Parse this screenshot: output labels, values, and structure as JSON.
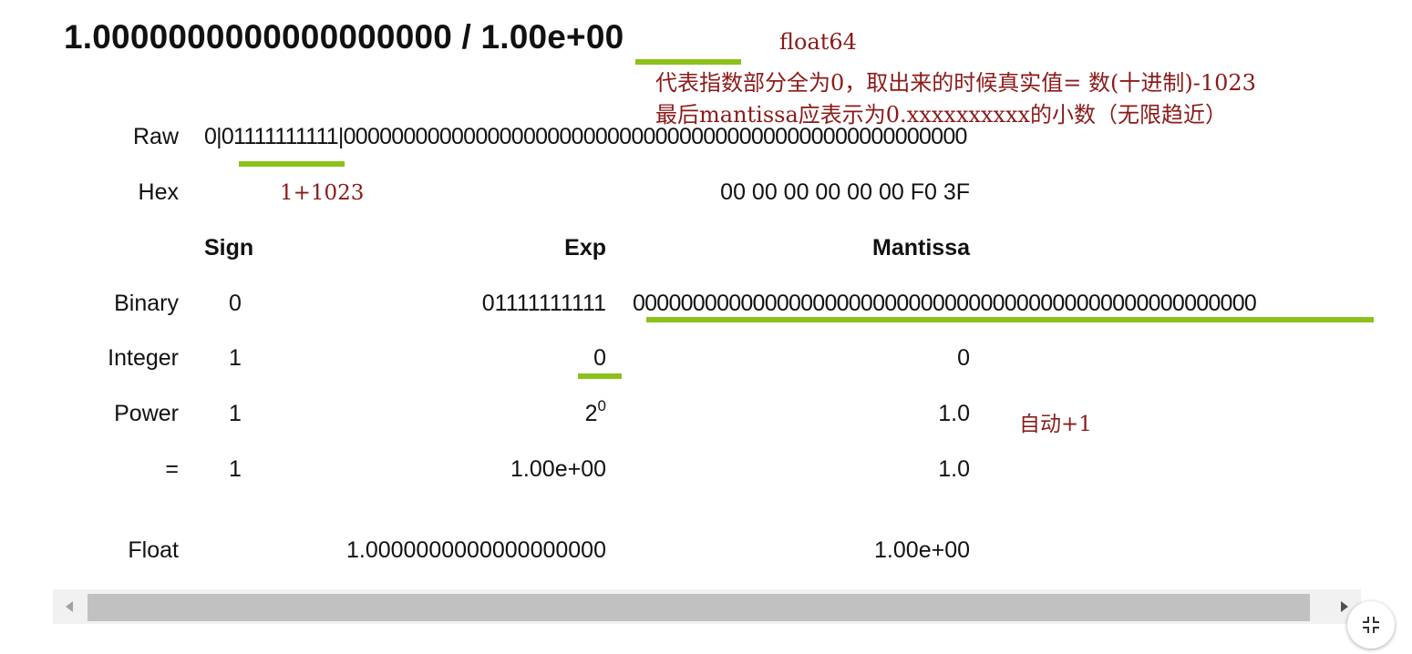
{
  "title": "1.0000000000000000000 / 1.00e+00",
  "annotations": {
    "type_note": "float64",
    "exp_note_line1": "代表指数部分全为0，取出来的时候真实值= 数(十进制)-1023",
    "exp_note_line2": "最后mantissa应表示为0.xxxxxxxxxx的小数（无限趋近）",
    "bias_note": "1+1023",
    "auto_note": "自动+1"
  },
  "raw": {
    "label": "Raw",
    "value": "0|01111111111|0000000000000000000000000000000000000000000000000000"
  },
  "hex": {
    "label": "Hex",
    "value": "00 00 00 00 00 00 F0 3F"
  },
  "columns": {
    "sign": "Sign",
    "exp": "Exp",
    "mantissa": "Mantissa"
  },
  "rows": {
    "binary": {
      "label": "Binary",
      "sign": "0",
      "exp": "01111111111",
      "mantissa": "0000000000000000000000000000000000000000000000000000"
    },
    "integer": {
      "label": "Integer",
      "sign": "1",
      "exp": "0",
      "mantissa": "0"
    },
    "power": {
      "label": "Power",
      "sign": "1",
      "exp_base": "2",
      "exp_sup": "0",
      "mantissa": "1.0"
    },
    "equals": {
      "label": "=",
      "sign": "1",
      "exp": "1.00e+00",
      "mantissa": "1.0"
    }
  },
  "float": {
    "label": "Float",
    "decimal": "1.0000000000000000000",
    "scientific": "1.00e+00"
  },
  "colors": {
    "highlight": "#8cc11b",
    "annotation": "#8b1a1a"
  },
  "icons": {
    "scroll_left": "triangle-left-icon",
    "scroll_right": "triangle-right-icon",
    "exit_fullscreen": "exit-fullscreen-icon"
  }
}
